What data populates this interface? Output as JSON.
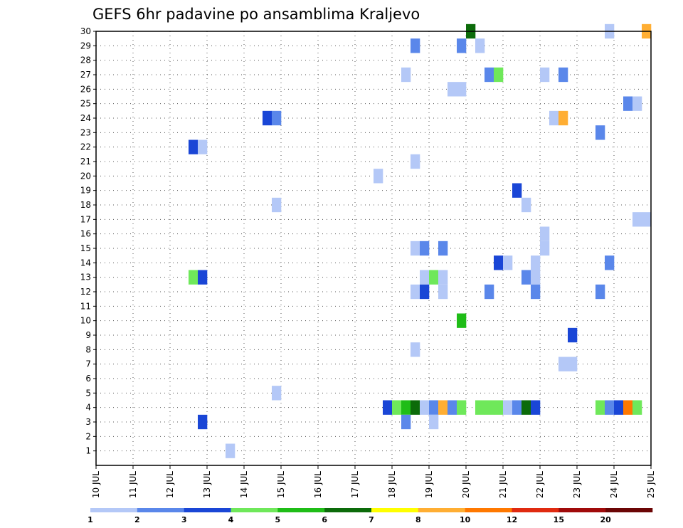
{
  "chart_data": {
    "type": "heatmap",
    "title": "GEFS 6hr padavine po ansamblima Kraljevo",
    "xlabel": "",
    "ylabel": "",
    "x_tick_labels": [
      "10 JUL",
      "11 JUL",
      "12 JUL",
      "13 JUL",
      "14 JUL",
      "15 JUL",
      "16 JUL",
      "17 JUL",
      "18 JUL",
      "19 JUL",
      "20 JUL",
      "21 JUL",
      "22 JUL",
      "23 JUL",
      "24 JUL",
      "25 JUL"
    ],
    "x_range_days": [
      10,
      25
    ],
    "y_tick_labels": [
      "1",
      "2",
      "3",
      "4",
      "5",
      "6",
      "7",
      "8",
      "9",
      "10",
      "11",
      "12",
      "13",
      "14",
      "15",
      "16",
      "17",
      "18",
      "19",
      "20",
      "21",
      "22",
      "23",
      "24",
      "25",
      "26",
      "27",
      "28",
      "29",
      "30"
    ],
    "y_range": [
      0,
      30
    ],
    "grid": true,
    "cell_width_days": 0.25,
    "colorscale": {
      "colors": [
        "#b4c8f7",
        "#5a87ea",
        "#1a46d6",
        "#6fe85a",
        "#1fbd17",
        "#0c6b0a",
        "#ffff00",
        "#ffae33",
        "#ff7800",
        "#e02a10",
        "#a00a0a",
        "#6b0505"
      ],
      "labels": [
        "1",
        "2",
        "3",
        "4",
        "5",
        "6",
        "7",
        "8",
        "10",
        "12",
        "15",
        "20"
      ]
    },
    "cells": [
      {
        "member": 30,
        "day": 20.0,
        "color": "#0c6b0a"
      },
      {
        "member": 30,
        "day": 23.75,
        "color": "#b4c8f7"
      },
      {
        "member": 30,
        "day": 24.75,
        "color": "#ffae33"
      },
      {
        "member": 29,
        "day": 18.5,
        "color": "#5a87ea"
      },
      {
        "member": 29,
        "day": 19.75,
        "color": "#5a87ea"
      },
      {
        "member": 29,
        "day": 20.25,
        "color": "#b4c8f7"
      },
      {
        "member": 27,
        "day": 18.25,
        "color": "#b4c8f7"
      },
      {
        "member": 27,
        "day": 20.5,
        "color": "#5a87ea"
      },
      {
        "member": 27,
        "day": 20.75,
        "color": "#6fe85a"
      },
      {
        "member": 27,
        "day": 22.0,
        "color": "#b4c8f7"
      },
      {
        "member": 27,
        "day": 22.5,
        "color": "#5a87ea"
      },
      {
        "member": 26,
        "day": 19.5,
        "color": "#b4c8f7"
      },
      {
        "member": 26,
        "day": 19.75,
        "color": "#b4c8f7"
      },
      {
        "member": 25,
        "day": 24.25,
        "color": "#5a87ea"
      },
      {
        "member": 25,
        "day": 24.5,
        "color": "#b4c8f7"
      },
      {
        "member": 24,
        "day": 14.5,
        "color": "#1a46d6"
      },
      {
        "member": 24,
        "day": 14.75,
        "color": "#5a87ea"
      },
      {
        "member": 24,
        "day": 22.25,
        "color": "#b4c8f7"
      },
      {
        "member": 24,
        "day": 22.5,
        "color": "#ffae33"
      },
      {
        "member": 23,
        "day": 23.5,
        "color": "#5a87ea"
      },
      {
        "member": 22,
        "day": 12.5,
        "color": "#1a46d6"
      },
      {
        "member": 22,
        "day": 12.75,
        "color": "#b4c8f7"
      },
      {
        "member": 21,
        "day": 18.5,
        "color": "#b4c8f7"
      },
      {
        "member": 20,
        "day": 17.5,
        "color": "#b4c8f7"
      },
      {
        "member": 19,
        "day": 21.25,
        "color": "#1a46d6"
      },
      {
        "member": 18,
        "day": 14.75,
        "color": "#b4c8f7"
      },
      {
        "member": 18,
        "day": 21.5,
        "color": "#b4c8f7"
      },
      {
        "member": 17,
        "day": 24.5,
        "color": "#b4c8f7"
      },
      {
        "member": 17,
        "day": 24.75,
        "color": "#b4c8f7"
      },
      {
        "member": 16,
        "day": 22.0,
        "color": "#b4c8f7"
      },
      {
        "member": 15,
        "day": 22.0,
        "color": "#b4c8f7"
      },
      {
        "member": 15,
        "day": 18.5,
        "color": "#b4c8f7"
      },
      {
        "member": 15,
        "day": 18.75,
        "color": "#5a87ea"
      },
      {
        "member": 15,
        "day": 19.25,
        "color": "#5a87ea"
      },
      {
        "member": 14,
        "day": 20.75,
        "color": "#1a46d6"
      },
      {
        "member": 14,
        "day": 21.0,
        "color": "#b4c8f7"
      },
      {
        "member": 14,
        "day": 21.75,
        "color": "#b4c8f7"
      },
      {
        "member": 14,
        "day": 23.75,
        "color": "#5a87ea"
      },
      {
        "member": 13,
        "day": 12.5,
        "color": "#6fe85a"
      },
      {
        "member": 13,
        "day": 12.75,
        "color": "#1a46d6"
      },
      {
        "member": 13,
        "day": 18.75,
        "color": "#b4c8f7"
      },
      {
        "member": 13,
        "day": 19.0,
        "color": "#6fe85a"
      },
      {
        "member": 13,
        "day": 19.25,
        "color": "#b4c8f7"
      },
      {
        "member": 13,
        "day": 21.5,
        "color": "#5a87ea"
      },
      {
        "member": 13,
        "day": 21.75,
        "color": "#b4c8f7"
      },
      {
        "member": 12,
        "day": 18.5,
        "color": "#b4c8f7"
      },
      {
        "member": 12,
        "day": 18.75,
        "color": "#1a46d6"
      },
      {
        "member": 12,
        "day": 19.25,
        "color": "#b4c8f7"
      },
      {
        "member": 12,
        "day": 20.5,
        "color": "#5a87ea"
      },
      {
        "member": 12,
        "day": 21.75,
        "color": "#5a87ea"
      },
      {
        "member": 12,
        "day": 23.5,
        "color": "#5a87ea"
      },
      {
        "member": 10,
        "day": 19.75,
        "color": "#1fbd17"
      },
      {
        "member": 9,
        "day": 22.75,
        "color": "#1a46d6"
      },
      {
        "member": 8,
        "day": 18.5,
        "color": "#b4c8f7"
      },
      {
        "member": 7,
        "day": 22.5,
        "color": "#b4c8f7"
      },
      {
        "member": 7,
        "day": 22.75,
        "color": "#b4c8f7"
      },
      {
        "member": 5,
        "day": 14.75,
        "color": "#b4c8f7"
      },
      {
        "member": 4,
        "day": 17.75,
        "color": "#1a46d6"
      },
      {
        "member": 4,
        "day": 18.0,
        "color": "#6fe85a"
      },
      {
        "member": 4,
        "day": 18.25,
        "color": "#1fbd17"
      },
      {
        "member": 4,
        "day": 18.5,
        "color": "#0c6b0a"
      },
      {
        "member": 4,
        "day": 18.75,
        "color": "#b4c8f7"
      },
      {
        "member": 4,
        "day": 19.0,
        "color": "#5a87ea"
      },
      {
        "member": 4,
        "day": 19.25,
        "color": "#ffae33"
      },
      {
        "member": 4,
        "day": 19.5,
        "color": "#5a87ea"
      },
      {
        "member": 4,
        "day": 19.75,
        "color": "#6fe85a"
      },
      {
        "member": 4,
        "day": 20.25,
        "color": "#6fe85a"
      },
      {
        "member": 4,
        "day": 20.5,
        "color": "#6fe85a"
      },
      {
        "member": 4,
        "day": 20.75,
        "color": "#6fe85a"
      },
      {
        "member": 4,
        "day": 21.0,
        "color": "#b4c8f7"
      },
      {
        "member": 4,
        "day": 21.25,
        "color": "#5a87ea"
      },
      {
        "member": 4,
        "day": 21.5,
        "color": "#0c6b0a"
      },
      {
        "member": 4,
        "day": 21.75,
        "color": "#1a46d6"
      },
      {
        "member": 4,
        "day": 23.5,
        "color": "#6fe85a"
      },
      {
        "member": 4,
        "day": 23.75,
        "color": "#5a87ea"
      },
      {
        "member": 4,
        "day": 24.0,
        "color": "#1a46d6"
      },
      {
        "member": 4,
        "day": 24.25,
        "color": "#ff7800"
      },
      {
        "member": 4,
        "day": 24.5,
        "color": "#6fe85a"
      },
      {
        "member": 3,
        "day": 12.75,
        "color": "#1a46d6"
      },
      {
        "member": 3,
        "day": 18.25,
        "color": "#5a87ea"
      },
      {
        "member": 3,
        "day": 19.0,
        "color": "#b4c8f7"
      },
      {
        "member": 1,
        "day": 13.5,
        "color": "#b4c8f7"
      }
    ]
  }
}
